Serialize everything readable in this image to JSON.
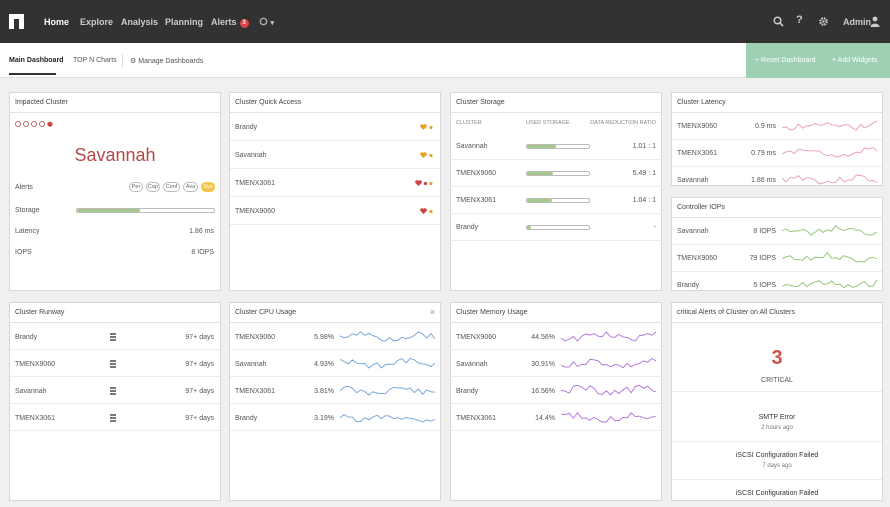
{
  "nav": {
    "items": [
      "Home",
      "Explore",
      "Analysis",
      "Planning"
    ],
    "alerts_label": "Alerts",
    "alerts_count": "3",
    "dropdown": "▾",
    "admin_label": "Admin"
  },
  "subnav": {
    "main_dashboard": "Main Dashboard",
    "top_n": "TOP N Charts",
    "manage": "Manage Dashboards",
    "reset": "+ Reset Dashboard",
    "add": "+ Add Widgets"
  },
  "impacted": {
    "title": "Impacted Cluster",
    "cluster": "Savannah",
    "alerts_label": "Alerts",
    "pills": [
      "Per",
      "Cap",
      "Conf",
      "Ava",
      "Sys"
    ],
    "storage_label": "Storage",
    "storage_fill": 0.46,
    "latency_label": "Latency",
    "latency_value": "1.86 ms",
    "iops_label": "IOPS",
    "iops_value": "8 IOPS"
  },
  "quick_access": {
    "title": "Cluster Quick Access",
    "rows": [
      "Brandy",
      "Savannah",
      "TMENX3061",
      "TMENX9060"
    ]
  },
  "storage": {
    "title": "Cluster Storage",
    "headers": [
      "CLUSTER",
      "USED STORAGE",
      "DATA REDUCTION RATIO"
    ],
    "rows": [
      {
        "name": "Savannah",
        "fill": 0.46,
        "ratio": "1.01 : 1"
      },
      {
        "name": "TMENX9060",
        "fill": 0.42,
        "ratio": "5.49 : 1"
      },
      {
        "name": "TMENX3061",
        "fill": 0.4,
        "ratio": "1.04 : 1"
      },
      {
        "name": "Brandy",
        "fill": 0.06,
        "ratio": "-"
      }
    ]
  },
  "latency": {
    "title": "Cluster Latency",
    "color": "#e79ab2",
    "rows": [
      {
        "name": "TMENX9060",
        "value": "0.9 ms"
      },
      {
        "name": "TMENX3061",
        "value": "0.79 ms"
      },
      {
        "name": "Savannah",
        "value": "1.86 ms"
      }
    ]
  },
  "controller_iops": {
    "title": "Controller IOPs",
    "color": "#8cc26a",
    "rows": [
      {
        "name": "Savannah",
        "value": "8 IOPS"
      },
      {
        "name": "TMENX9060",
        "value": "79 IOPS"
      },
      {
        "name": "Brandy",
        "value": "5 IOPS"
      }
    ]
  },
  "runway": {
    "title": "Cluster Runway",
    "rows": [
      {
        "name": "Brandy",
        "value": "97+ days"
      },
      {
        "name": "TMENX9060",
        "value": "97+ days"
      },
      {
        "name": "Savannah",
        "value": "97+ days"
      },
      {
        "name": "TMENX3061",
        "value": "97+ days"
      }
    ]
  },
  "cpu": {
    "title": "Cluster CPU Usage",
    "close": "×",
    "color": "#6fa0d8",
    "rows": [
      {
        "name": "TMENX9060",
        "value": "5.98%"
      },
      {
        "name": "Savannah",
        "value": "4.93%"
      },
      {
        "name": "TMENX3061",
        "value": "3.81%"
      },
      {
        "name": "Brandy",
        "value": "3.19%"
      }
    ]
  },
  "memory": {
    "title": "Cluster Memory Usage",
    "color": "#b06fd8",
    "rows": [
      {
        "name": "TMENX9060",
        "value": "44.56%"
      },
      {
        "name": "Savannah",
        "value": "30.91%"
      },
      {
        "name": "Brandy",
        "value": "16.56%"
      },
      {
        "name": "TMENX3061",
        "value": "14.4%"
      }
    ]
  },
  "critical": {
    "title": "critical Alerts of Cluster on All Clusters",
    "count": "3",
    "label": "CRITICAL",
    "alerts": [
      {
        "title": "SMTP Error",
        "time": "2 hours ago"
      },
      {
        "title": "iSCSI Configuration Failed",
        "time": "7 days ago"
      },
      {
        "title": "iSCSI Configuration Failed",
        "time": ""
      }
    ]
  }
}
